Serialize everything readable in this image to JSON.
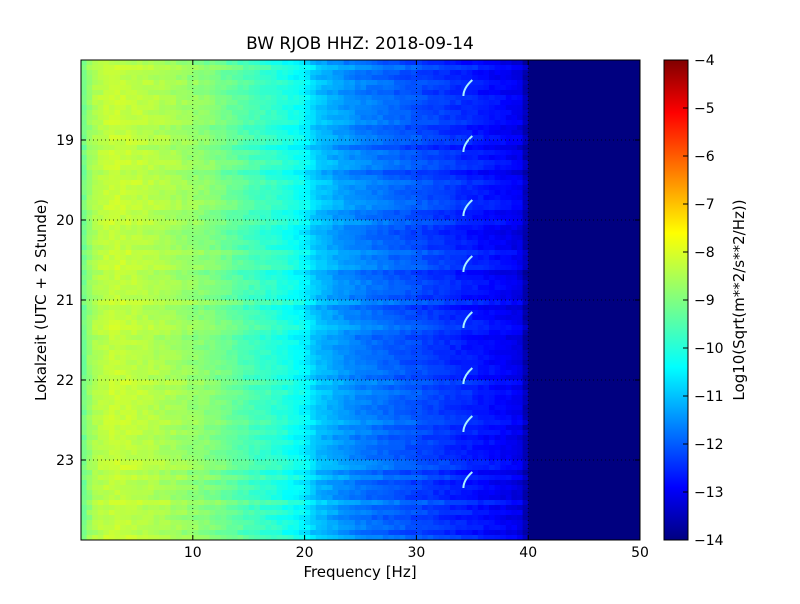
{
  "chart_data": {
    "type": "heatmap",
    "title": "BW RJOB HHZ: 2018-09-14",
    "xlabel": "Frequency [Hz]",
    "ylabel": "Lokalzeit (UTC + 2 Stunde)",
    "xlim": [
      0,
      50
    ],
    "ylim": [
      24,
      18
    ],
    "x_ticks": [
      10,
      20,
      30,
      40,
      50
    ],
    "y_ticks": [
      19,
      20,
      21,
      22,
      23
    ],
    "grid": true,
    "colorbar": {
      "label": "Log10(Sqrt(m**2/s**2/Hz))",
      "range": [
        -14,
        -4
      ],
      "ticks": [
        -14,
        -13,
        -12,
        -11,
        -10,
        -9,
        -8,
        -7,
        -6,
        -5,
        -4
      ],
      "colormap": "jet"
    },
    "spectral_profile": {
      "frequency_hz": [
        0,
        1,
        2,
        3,
        5,
        8,
        10,
        12,
        15,
        18,
        20,
        21,
        23,
        25,
        28,
        30,
        33,
        35,
        38,
        39.5,
        40,
        41,
        45,
        50
      ],
      "log10_psd": [
        -9.3,
        -8.6,
        -8.4,
        -8.3,
        -8.4,
        -8.6,
        -8.8,
        -9.0,
        -9.5,
        -9.9,
        -10.3,
        -10.8,
        -11.2,
        -11.5,
        -11.8,
        -12.0,
        -12.3,
        -12.5,
        -12.8,
        -13.0,
        -14.0,
        -14.0,
        -14.0,
        -14.0
      ]
    },
    "periodic_line": {
      "frequency_hz": 34.5,
      "times_hour": [
        18.4,
        19.1,
        19.9,
        20.6,
        21.3,
        22.0,
        22.6,
        23.3
      ]
    },
    "colors": {
      "jet": [
        "#000080",
        "#0000ff",
        "#0080ff",
        "#00ffff",
        "#80ff80",
        "#ffff00",
        "#ff8000",
        "#ff0000",
        "#800000"
      ]
    }
  }
}
